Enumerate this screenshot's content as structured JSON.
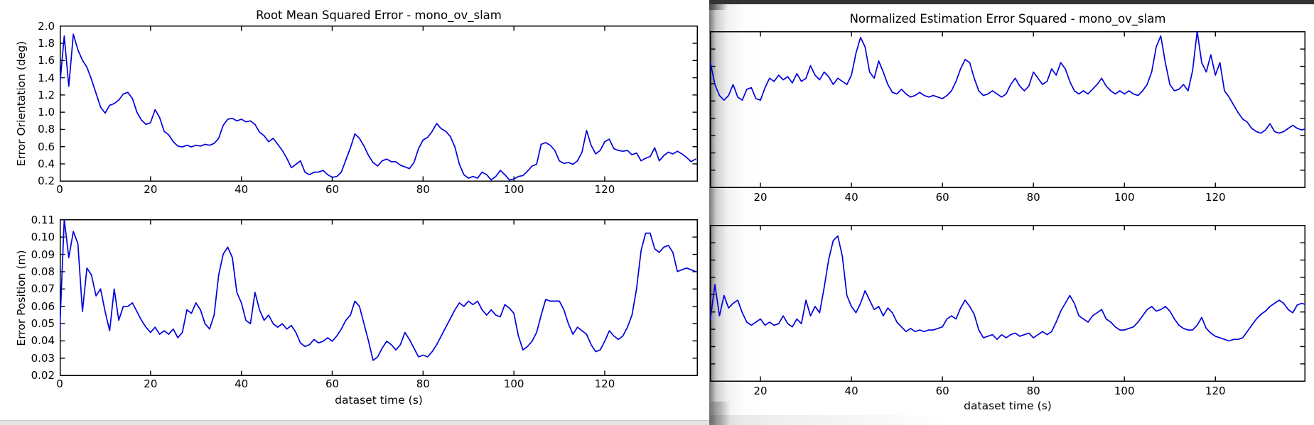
{
  "colors": {
    "line": "#0000dd",
    "frame": "#000000",
    "titlebar": "#333333",
    "bottom_strip": "#e4e4e4"
  },
  "windows": {
    "left": {
      "title": "Root Mean Squared Error - mono_ov_slam"
    },
    "right": {
      "title": "Normalized Estimation Error Squared - mono_ov_slam"
    }
  },
  "chart_data": [
    {
      "id": "rmse-orientation",
      "type": "line",
      "title": "Root Mean Squared Error - mono_ov_slam",
      "xlabel": "dataset time (s)",
      "ylabel": "Error Orientation (deg)",
      "xlim": [
        0,
        140.5
      ],
      "ylim": [
        0.2,
        2.0
      ],
      "xticks": [
        0,
        20,
        40,
        60,
        80,
        100,
        120
      ],
      "ytick_labels": [
        "2.0",
        "1.8",
        "1.6",
        "1.4",
        "1.2",
        "1.0",
        "0.8",
        "0.6",
        "0.4",
        "0.2"
      ],
      "grid": false,
      "x0": 0,
      "dx": 1,
      "values": [
        1.3,
        1.88,
        1.3,
        1.9,
        1.72,
        1.6,
        1.52,
        1.38,
        1.22,
        1.06,
        0.99,
        1.08,
        1.1,
        1.14,
        1.21,
        1.23,
        1.16,
        1.0,
        0.91,
        0.86,
        0.88,
        1.03,
        0.94,
        0.78,
        0.74,
        0.66,
        0.61,
        0.6,
        0.62,
        0.6,
        0.62,
        0.61,
        0.63,
        0.62,
        0.64,
        0.7,
        0.85,
        0.92,
        0.93,
        0.9,
        0.92,
        0.89,
        0.9,
        0.86,
        0.77,
        0.73,
        0.66,
        0.7,
        0.63,
        0.56,
        0.47,
        0.36,
        0.4,
        0.44,
        0.31,
        0.28,
        0.31,
        0.31,
        0.33,
        0.28,
        0.25,
        0.26,
        0.31,
        0.45,
        0.59,
        0.75,
        0.7,
        0.61,
        0.5,
        0.42,
        0.38,
        0.44,
        0.46,
        0.43,
        0.43,
        0.39,
        0.37,
        0.35,
        0.42,
        0.58,
        0.68,
        0.71,
        0.78,
        0.87,
        0.81,
        0.78,
        0.72,
        0.6,
        0.4,
        0.28,
        0.24,
        0.26,
        0.24,
        0.31,
        0.28,
        0.22,
        0.26,
        0.33,
        0.28,
        0.22,
        0.23,
        0.26,
        0.27,
        0.32,
        0.38,
        0.4,
        0.63,
        0.65,
        0.62,
        0.56,
        0.44,
        0.41,
        0.42,
        0.4,
        0.44,
        0.54,
        0.79,
        0.62,
        0.52,
        0.56,
        0.66,
        0.69,
        0.58,
        0.56,
        0.55,
        0.56,
        0.51,
        0.53,
        0.44,
        0.47,
        0.49,
        0.59,
        0.44,
        0.5,
        0.54,
        0.52,
        0.55,
        0.52,
        0.48,
        0.43,
        0.46
      ]
    },
    {
      "id": "rmse-position",
      "type": "line",
      "title": "",
      "xlabel": "dataset time (s)",
      "ylabel": "Error Position (m)",
      "xlim": [
        0,
        140.5
      ],
      "ylim": [
        0.02,
        0.11
      ],
      "xticks": [
        0,
        20,
        40,
        60,
        80,
        100,
        120
      ],
      "ytick_labels": [
        "0.11",
        "0.10",
        "0.09",
        "0.08",
        "0.07",
        "0.06",
        "0.05",
        "0.04",
        "0.03",
        "0.02"
      ],
      "grid": false,
      "x0": 0,
      "dx": 1,
      "values": [
        0.046,
        0.11,
        0.088,
        0.103,
        0.096,
        0.057,
        0.082,
        0.078,
        0.066,
        0.07,
        0.057,
        0.046,
        0.07,
        0.052,
        0.06,
        0.06,
        0.062,
        0.057,
        0.052,
        0.048,
        0.045,
        0.048,
        0.044,
        0.046,
        0.044,
        0.047,
        0.042,
        0.045,
        0.058,
        0.056,
        0.062,
        0.058,
        0.05,
        0.047,
        0.055,
        0.078,
        0.09,
        0.094,
        0.088,
        0.068,
        0.062,
        0.052,
        0.05,
        0.068,
        0.058,
        0.052,
        0.055,
        0.05,
        0.048,
        0.05,
        0.047,
        0.049,
        0.045,
        0.039,
        0.037,
        0.038,
        0.041,
        0.039,
        0.04,
        0.042,
        0.04,
        0.043,
        0.047,
        0.052,
        0.055,
        0.063,
        0.06,
        0.05,
        0.04,
        0.029,
        0.031,
        0.036,
        0.04,
        0.038,
        0.035,
        0.038,
        0.045,
        0.041,
        0.036,
        0.031,
        0.032,
        0.031,
        0.034,
        0.038,
        0.043,
        0.048,
        0.053,
        0.058,
        0.062,
        0.06,
        0.063,
        0.061,
        0.063,
        0.058,
        0.055,
        0.058,
        0.055,
        0.054,
        0.061,
        0.059,
        0.056,
        0.043,
        0.035,
        0.037,
        0.04,
        0.045,
        0.055,
        0.064,
        0.063,
        0.063,
        0.063,
        0.058,
        0.05,
        0.044,
        0.048,
        0.046,
        0.044,
        0.038,
        0.034,
        0.035,
        0.04,
        0.046,
        0.043,
        0.041,
        0.043,
        0.048,
        0.055,
        0.07,
        0.092,
        0.102,
        0.102,
        0.093,
        0.091,
        0.094,
        0.095,
        0.091,
        0.08,
        0.081,
        0.082,
        0.081,
        0.08
      ]
    },
    {
      "id": "nees-orientation",
      "type": "line",
      "title": "Normalized Estimation Error Squared - mono_ov_slam",
      "xlabel": "dataset time (s)",
      "ylabel": null,
      "y_axis_note": "y-axis labels clipped off the left edge of the window; values normalized 0-1 of plot height",
      "xlim": [
        8.9,
        139.8
      ],
      "ylim": [
        0,
        1
      ],
      "xticks": [
        20,
        40,
        60,
        80,
        100,
        120
      ],
      "ytick_labels": null,
      "grid": false,
      "x0": 9,
      "dx": 1,
      "values": [
        0.8,
        0.66,
        0.59,
        0.56,
        0.59,
        0.66,
        0.58,
        0.56,
        0.63,
        0.64,
        0.57,
        0.56,
        0.64,
        0.7,
        0.68,
        0.72,
        0.69,
        0.71,
        0.67,
        0.73,
        0.68,
        0.7,
        0.78,
        0.72,
        0.69,
        0.74,
        0.71,
        0.66,
        0.7,
        0.68,
        0.66,
        0.72,
        0.86,
        0.96,
        0.9,
        0.74,
        0.7,
        0.81,
        0.74,
        0.66,
        0.61,
        0.6,
        0.63,
        0.6,
        0.58,
        0.59,
        0.61,
        0.59,
        0.58,
        0.59,
        0.58,
        0.57,
        0.59,
        0.62,
        0.68,
        0.76,
        0.82,
        0.8,
        0.7,
        0.62,
        0.59,
        0.6,
        0.62,
        0.6,
        0.58,
        0.6,
        0.66,
        0.7,
        0.65,
        0.62,
        0.65,
        0.74,
        0.7,
        0.66,
        0.68,
        0.76,
        0.72,
        0.8,
        0.76,
        0.68,
        0.62,
        0.6,
        0.62,
        0.6,
        0.63,
        0.66,
        0.7,
        0.65,
        0.62,
        0.6,
        0.62,
        0.6,
        0.62,
        0.6,
        0.59,
        0.62,
        0.66,
        0.74,
        0.9,
        0.97,
        0.8,
        0.66,
        0.62,
        0.63,
        0.66,
        0.62,
        0.75,
        1.0,
        0.8,
        0.74,
        0.85,
        0.72,
        0.8,
        0.62,
        0.58,
        0.53,
        0.48,
        0.44,
        0.42,
        0.38,
        0.36,
        0.35,
        0.37,
        0.41,
        0.36,
        0.35,
        0.36,
        0.38,
        0.4,
        0.38,
        0.37,
        0.38
      ]
    },
    {
      "id": "nees-position",
      "type": "line",
      "title": "",
      "xlabel": "dataset time (s)",
      "ylabel": null,
      "y_axis_note": "y-axis labels clipped off the left edge of the window; values normalized 0-1 of plot height",
      "xlim": [
        8.9,
        139.8
      ],
      "ylim": [
        0,
        1
      ],
      "xticks": [
        20,
        40,
        60,
        80,
        100,
        120
      ],
      "ytick_labels": null,
      "grid": false,
      "x0": 9,
      "dx": 1,
      "values": [
        0.4,
        0.62,
        0.42,
        0.55,
        0.47,
        0.5,
        0.52,
        0.44,
        0.38,
        0.36,
        0.38,
        0.4,
        0.36,
        0.38,
        0.36,
        0.37,
        0.42,
        0.37,
        0.35,
        0.4,
        0.37,
        0.52,
        0.42,
        0.48,
        0.44,
        0.6,
        0.78,
        0.9,
        0.93,
        0.8,
        0.55,
        0.48,
        0.44,
        0.5,
        0.58,
        0.52,
        0.46,
        0.48,
        0.42,
        0.47,
        0.44,
        0.38,
        0.35,
        0.32,
        0.34,
        0.32,
        0.33,
        0.32,
        0.33,
        0.33,
        0.34,
        0.35,
        0.4,
        0.42,
        0.4,
        0.47,
        0.52,
        0.48,
        0.43,
        0.33,
        0.28,
        0.29,
        0.3,
        0.27,
        0.3,
        0.28,
        0.3,
        0.31,
        0.29,
        0.3,
        0.31,
        0.28,
        0.3,
        0.32,
        0.3,
        0.32,
        0.38,
        0.45,
        0.5,
        0.55,
        0.5,
        0.42,
        0.4,
        0.38,
        0.42,
        0.44,
        0.46,
        0.4,
        0.38,
        0.35,
        0.33,
        0.33,
        0.34,
        0.35,
        0.38,
        0.42,
        0.46,
        0.48,
        0.45,
        0.46,
        0.48,
        0.45,
        0.4,
        0.36,
        0.34,
        0.33,
        0.33,
        0.36,
        0.41,
        0.34,
        0.31,
        0.29,
        0.28,
        0.27,
        0.26,
        0.27,
        0.27,
        0.28,
        0.32,
        0.36,
        0.4,
        0.43,
        0.45,
        0.48,
        0.5,
        0.52,
        0.5,
        0.46,
        0.44,
        0.49,
        0.5,
        0.49
      ]
    }
  ]
}
